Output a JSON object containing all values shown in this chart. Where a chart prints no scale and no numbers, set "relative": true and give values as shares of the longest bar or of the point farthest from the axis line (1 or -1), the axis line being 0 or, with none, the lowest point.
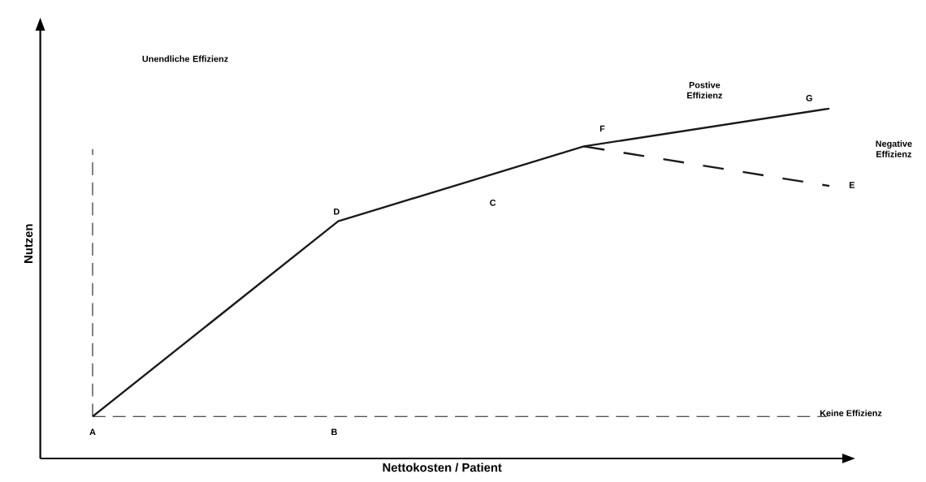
{
  "chart_data": {
    "type": "line",
    "relative": true,
    "xlabel": "Nettokosten / Patient",
    "ylabel": "Nutzen",
    "line_style": "solid",
    "categories": [
      null,
      null,
      null,
      null
    ],
    "series": [
      {
        "values": [
          0.12,
          0.678,
          0.892,
          1
        ],
        "color": "#1a1a1a"
      },
      {
        "values": [
          null,
          null,
          0.892,
          0.779
        ],
        "color": "#1a1a1a",
        "line_style": "dashed"
      }
    ],
    "ref_lines": [
      {
        "axis": "y",
        "value": 0.12,
        "label": "Keine Effizienz",
        "line_style": "dashed",
        "color": "#1a1a1a"
      }
    ],
    "annotations": [
      "A",
      "B",
      "D",
      "C",
      "F",
      "G",
      "E",
      "Postive Effizienz",
      "Negative Effizienz",
      "Unendliche Effizienz"
    ]
  }
}
